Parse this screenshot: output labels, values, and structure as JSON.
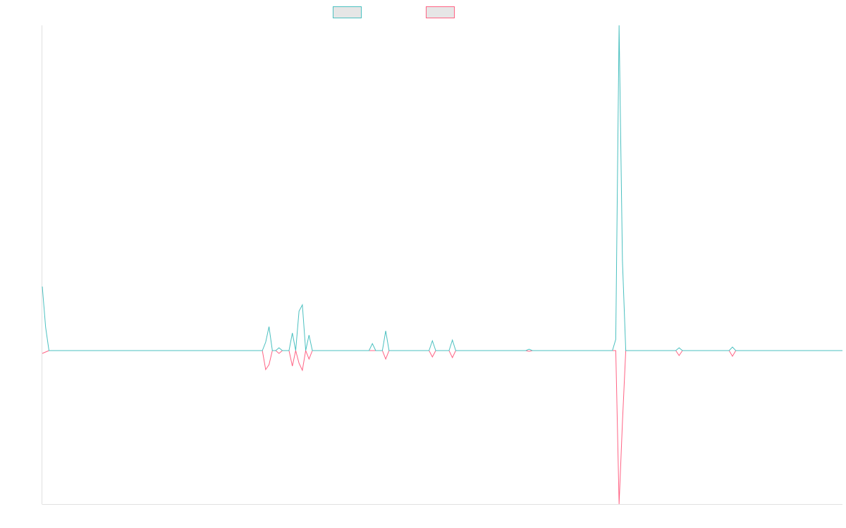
{
  "chart_data": {
    "type": "line",
    "ylim": [
      -218,
      462
    ],
    "legend": "top",
    "series": [
      {
        "color": "#ff6384",
        "values": [
          -4,
          -2,
          0,
          0,
          0,
          0,
          0,
          0,
          0,
          0,
          0,
          0,
          0,
          0,
          0,
          0,
          0,
          0,
          0,
          0,
          0,
          0,
          0,
          0,
          0,
          0,
          0,
          0,
          0,
          0,
          0,
          0,
          0,
          0,
          0,
          0,
          0,
          0,
          0,
          0,
          0,
          0,
          0,
          0,
          0,
          0,
          0,
          0,
          0,
          0,
          0,
          0,
          0,
          0,
          0,
          0,
          0,
          0,
          0,
          0,
          0,
          0,
          0,
          0,
          0,
          0,
          0,
          -27,
          -20,
          0,
          0,
          -4,
          0,
          0,
          0,
          -22,
          0,
          -18,
          -28,
          0,
          -12,
          0,
          0,
          0,
          0,
          0,
          0,
          0,
          0,
          0,
          0,
          0,
          0,
          0,
          0,
          0,
          0,
          0,
          0,
          0,
          0,
          0,
          0,
          -12,
          0,
          0,
          0,
          0,
          0,
          0,
          0,
          0,
          0,
          0,
          0,
          0,
          0,
          -9,
          0,
          0,
          0,
          0,
          0,
          -10,
          0,
          0,
          0,
          0,
          0,
          0,
          0,
          0,
          0,
          0,
          0,
          0,
          0,
          0,
          0,
          0,
          0,
          0,
          0,
          0,
          0,
          0,
          -1,
          0,
          0,
          0,
          0,
          0,
          0,
          0,
          0,
          0,
          0,
          0,
          0,
          0,
          0,
          0,
          0,
          0,
          0,
          0,
          0,
          0,
          0,
          0,
          0,
          0,
          0,
          -218,
          -102,
          0,
          0,
          0,
          0,
          0,
          0,
          0,
          0,
          0,
          0,
          0,
          0,
          0,
          0,
          0,
          0,
          -7,
          0,
          0,
          0,
          0,
          0,
          0,
          0,
          0,
          0,
          0,
          0,
          0,
          0,
          0,
          0,
          -8,
          0,
          0,
          0,
          0,
          0,
          0,
          0,
          0,
          0,
          0,
          0,
          0,
          0,
          0,
          0,
          0,
          0,
          0,
          0,
          0,
          0,
          0,
          0,
          0,
          0,
          0,
          0,
          0,
          0,
          0,
          0,
          0,
          0
        ]
      },
      {
        "color": "#4bc0c0",
        "values": [
          91,
          33,
          0,
          0,
          0,
          0,
          0,
          0,
          0,
          0,
          0,
          0,
          0,
          0,
          0,
          0,
          0,
          0,
          0,
          0,
          0,
          0,
          0,
          0,
          0,
          0,
          0,
          0,
          0,
          0,
          0,
          0,
          0,
          0,
          0,
          0,
          0,
          0,
          0,
          0,
          0,
          0,
          0,
          0,
          0,
          0,
          0,
          0,
          0,
          0,
          0,
          0,
          0,
          0,
          0,
          0,
          0,
          0,
          0,
          0,
          0,
          0,
          0,
          0,
          0,
          0,
          0,
          12,
          34,
          0,
          0,
          4,
          0,
          0,
          0,
          25,
          0,
          56,
          65,
          0,
          22,
          0,
          0,
          0,
          0,
          0,
          0,
          0,
          0,
          0,
          0,
          0,
          0,
          0,
          0,
          0,
          0,
          0,
          0,
          10,
          0,
          0,
          0,
          28,
          0,
          0,
          0,
          0,
          0,
          0,
          0,
          0,
          0,
          0,
          0,
          0,
          0,
          14,
          0,
          0,
          0,
          0,
          0,
          15,
          0,
          0,
          0,
          0,
          0,
          0,
          0,
          0,
          0,
          0,
          0,
          0,
          0,
          0,
          0,
          0,
          0,
          0,
          0,
          0,
          0,
          0,
          2,
          0,
          0,
          0,
          0,
          0,
          0,
          0,
          0,
          0,
          0,
          0,
          0,
          0,
          0,
          0,
          0,
          0,
          0,
          0,
          0,
          0,
          0,
          0,
          0,
          0,
          16,
          462,
          128,
          0,
          0,
          0,
          0,
          0,
          0,
          0,
          0,
          0,
          0,
          0,
          0,
          0,
          0,
          0,
          0,
          4,
          0,
          0,
          0,
          0,
          0,
          0,
          0,
          0,
          0,
          0,
          0,
          0,
          0,
          0,
          0,
          5,
          0,
          0,
          0,
          0,
          0,
          0,
          0,
          0,
          0,
          0,
          0,
          0,
          0,
          0,
          0,
          0,
          0,
          0,
          0,
          0,
          0,
          0,
          0,
          0,
          0,
          0,
          0,
          0,
          0,
          0,
          0,
          0,
          0
        ]
      }
    ]
  }
}
